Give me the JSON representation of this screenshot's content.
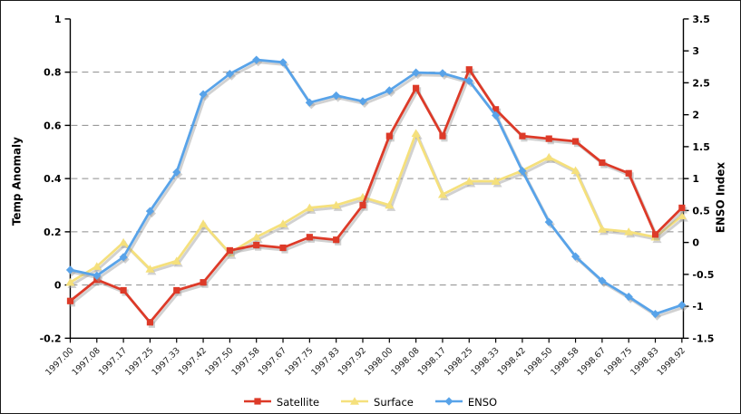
{
  "chart_data": {
    "type": "line",
    "title": "",
    "categories": [
      "1997.00",
      "1997.08",
      "1997.17",
      "1997.25",
      "1997.33",
      "1997.42",
      "1997.50",
      "1997.58",
      "1997.67",
      "1997.75",
      "1997.83",
      "1997.92",
      "1998.00",
      "1998.08",
      "1998.17",
      "1998.25",
      "1998.33",
      "1998.42",
      "1998.50",
      "1998.58",
      "1998.67",
      "1998.75",
      "1998.83",
      "1998.92"
    ],
    "series": [
      {
        "name": "Satellite",
        "axis": "left",
        "marker": "square",
        "color": "#dd3a28",
        "values": [
          -0.06,
          0.02,
          -0.02,
          -0.14,
          -0.02,
          0.01,
          0.13,
          0.15,
          0.14,
          0.18,
          0.17,
          0.3,
          0.56,
          0.74,
          0.56,
          0.81,
          0.66,
          0.56,
          0.55,
          0.54,
          0.46,
          0.42,
          0.19,
          0.29
        ]
      },
      {
        "name": "Surface",
        "axis": "left",
        "marker": "triangle",
        "color": "#f5e07c",
        "values": [
          0.01,
          0.07,
          0.16,
          0.06,
          0.09,
          0.23,
          0.12,
          0.18,
          0.23,
          0.29,
          0.3,
          0.33,
          0.3,
          0.57,
          0.34,
          0.39,
          0.39,
          0.43,
          0.48,
          0.43,
          0.21,
          0.2,
          0.18,
          0.26
        ]
      },
      {
        "name": "ENSO",
        "axis": "right",
        "marker": "diamond",
        "color": "#58a3e9",
        "values": [
          -0.43,
          -0.52,
          -0.23,
          0.49,
          1.1,
          2.32,
          2.64,
          2.86,
          2.82,
          2.19,
          2.3,
          2.21,
          2.38,
          2.66,
          2.65,
          2.53,
          1.99,
          1.12,
          0.32,
          -0.22,
          -0.6,
          -0.85,
          -1.12,
          -0.98
        ]
      }
    ],
    "left_axis": {
      "label": "Temp Anomaly",
      "min": -0.2,
      "max": 1,
      "tick_step": 0.2,
      "ticks": [
        "-0.2",
        "0",
        "0.2",
        "0.4",
        "0.6",
        "0.8",
        "1"
      ],
      "gridline_values": [
        0,
        0.2,
        0.4,
        0.6,
        0.8
      ]
    },
    "right_axis": {
      "label": "ENSO Index",
      "min": -1.5,
      "max": 3.5,
      "tick_step": 0.5,
      "ticks": [
        "-1.5",
        "-1",
        "-0.5",
        "0",
        "0.5",
        "1",
        "1.5",
        "2",
        "2.5",
        "3",
        "3.5"
      ]
    },
    "legend_position": "bottom",
    "grid": "horizontal-dashed",
    "style": {
      "grid_color": "#8c8c8c",
      "axis_color": "#000000",
      "shadow_color": "#999999",
      "background": "#ffffff"
    }
  }
}
